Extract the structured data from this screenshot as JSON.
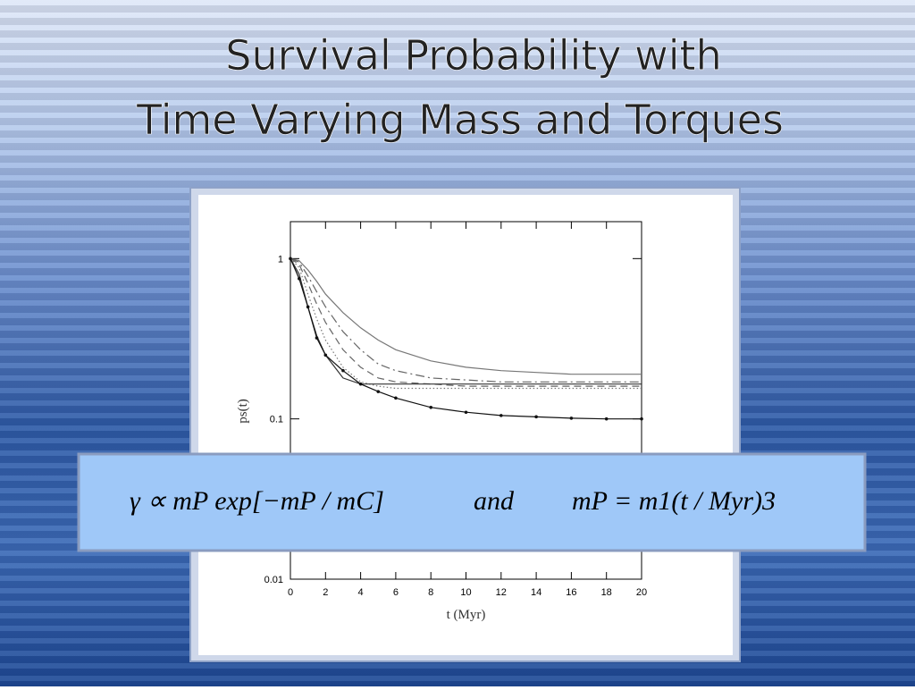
{
  "slide": {
    "title_lines": [
      "Survival Probability with",
      "Time Varying Mass and Torques"
    ]
  },
  "chart_data": {
    "type": "line",
    "xlabel": "t (Myr)",
    "ylabel": "ps(t)",
    "log_y": true,
    "x": [
      0,
      0.5,
      1,
      1.5,
      2,
      3,
      4,
      5,
      6,
      8,
      10,
      12,
      14,
      16,
      18,
      20
    ],
    "xlim": [
      0,
      20
    ],
    "xticks": [
      0,
      2,
      4,
      6,
      8,
      10,
      12,
      14,
      16,
      18,
      20
    ],
    "ylim": [
      0.01,
      1.7
    ],
    "yticks": [
      0.01,
      0.1,
      1
    ],
    "series": [
      {
        "color": "#777777",
        "dash": "solid",
        "values": [
          1,
          0.97,
          0.85,
          0.72,
          0.6,
          0.46,
          0.37,
          0.31,
          0.27,
          0.23,
          0.21,
          0.2,
          0.195,
          0.19,
          0.19,
          0.19
        ]
      },
      {
        "color": "#666666",
        "dash": "dashdot",
        "values": [
          1,
          0.95,
          0.78,
          0.62,
          0.5,
          0.35,
          0.27,
          0.22,
          0.2,
          0.18,
          0.175,
          0.17,
          0.17,
          0.17,
          0.17,
          0.17
        ]
      },
      {
        "color": "#666666",
        "dash": "dashed",
        "values": [
          1,
          0.92,
          0.7,
          0.52,
          0.4,
          0.27,
          0.21,
          0.18,
          0.17,
          0.165,
          0.16,
          0.16,
          0.16,
          0.16,
          0.16,
          0.16
        ]
      },
      {
        "color": "#777777",
        "dash": "dotted",
        "values": [
          1,
          0.88,
          0.6,
          0.42,
          0.31,
          0.21,
          0.17,
          0.16,
          0.155,
          0.155,
          0.155,
          0.155,
          0.155,
          0.155,
          0.155,
          0.155
        ]
      },
      {
        "color": "#333333",
        "dash": "solid",
        "values": [
          1,
          0.8,
          0.5,
          0.33,
          0.25,
          0.18,
          0.165,
          0.165,
          0.165,
          0.165,
          0.165,
          0.165,
          0.165,
          0.165,
          0.165,
          0.165
        ]
      },
      {
        "color": "#111111",
        "dash": "points",
        "values": [
          1,
          0.75,
          0.5,
          0.32,
          0.25,
          0.2,
          0.165,
          0.148,
          0.135,
          0.118,
          0.11,
          0.105,
          0.103,
          0.101,
          0.1,
          0.1
        ]
      }
    ]
  },
  "formula": {
    "left": "γ ∝ mP exp[−mP / mC]",
    "middle": "and",
    "right": "mP = m1(t / Myr)3"
  }
}
